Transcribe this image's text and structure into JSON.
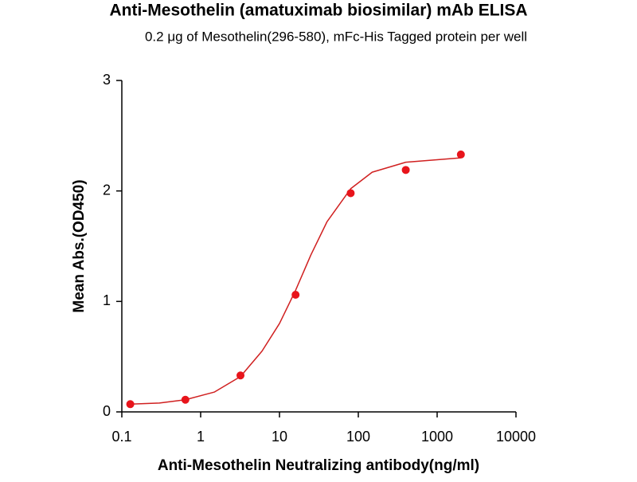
{
  "chart_data": {
    "type": "scatter",
    "title": "Anti-Mesothelin (amatuximab biosimilar) mAb ELISA",
    "subtitle": "0.2 μg of Mesothelin(296-580), mFc-His Tagged protein per well",
    "x_label": "Anti-Mesothelin Neutralizing antibody(ng/ml)",
    "y_label": "Mean Abs.(OD450)",
    "xscale": "log",
    "xlim": [
      0.1,
      10000
    ],
    "ylim": [
      0,
      3
    ],
    "xticks": [
      0.1,
      1,
      10,
      100,
      1000,
      10000
    ],
    "yticks": [
      0,
      1,
      2,
      3
    ],
    "series": [
      {
        "type": "scatter",
        "color": "#e8141b",
        "x": [
          0.128,
          0.64,
          3.2,
          16,
          80,
          400,
          2000
        ],
        "values": [
          0.07,
          0.11,
          0.33,
          1.06,
          1.98,
          2.19,
          2.33
        ]
      },
      {
        "type": "line",
        "color": "#d02020",
        "x": [
          0.128,
          0.3,
          0.64,
          1.5,
          3.2,
          6,
          10,
          16,
          25,
          40,
          80,
          150,
          400,
          2000
        ],
        "values": [
          0.07,
          0.08,
          0.11,
          0.18,
          0.32,
          0.55,
          0.8,
          1.1,
          1.42,
          1.72,
          2.02,
          2.17,
          2.26,
          2.3
        ]
      }
    ]
  }
}
